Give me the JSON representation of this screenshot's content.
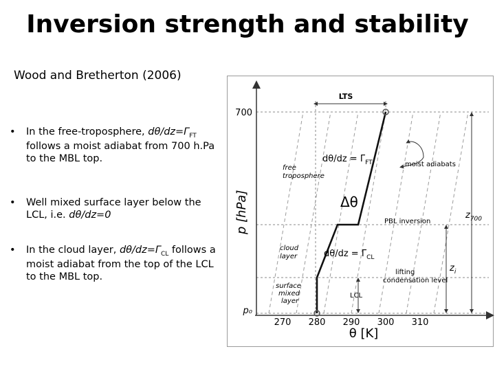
{
  "title": "Inversion strength and stability",
  "subtitle": "Wood and Bretherton (2006)",
  "bullets": [
    {
      "prefix": "In the free-troposphere, ",
      "math": "dθ/dz=Γ",
      "sub": "FT",
      "suffix": " follows a moist adiabat from 700 h.Pa to the MBL top."
    },
    {
      "prefix": "Well mixed surface layer below the LCL, i.e. ",
      "math": "dθ/dz=0",
      "sub": "",
      "suffix": ""
    },
    {
      "prefix": "In the cloud layer, ",
      "math": "dθ/dz=Γ",
      "sub": "CL",
      "suffix": " follows a moist adiabat from the top of the LCL to the MBL top."
    }
  ],
  "figure": {
    "ylabel": "p [hPa]",
    "xlabel": "θ [K]",
    "y_ticks": [
      {
        "label": "700"
      },
      {
        "label": "p₀"
      }
    ],
    "x_ticks": [
      "270",
      "280",
      "290",
      "300",
      "310"
    ],
    "profile_K": [
      {
        "theta": 280,
        "level": "surface"
      },
      {
        "theta": 280,
        "level": "LCL"
      },
      {
        "theta": 286,
        "level": "PBL inversion"
      },
      {
        "theta": 292,
        "level": "PBL inversion"
      },
      {
        "theta": 300,
        "level": "700 hPa"
      }
    ],
    "labels": {
      "lts": "LTS",
      "moist_adiabats": "moist adiabats",
      "free_troposphere": [
        "free",
        "troposphere"
      ],
      "gamma_ft": "dθ/dz = Γ",
      "gamma_ft_sub": "FT",
      "delta_theta": "Δθ",
      "pbl_inversion": "PBL inversion",
      "z700": "z",
      "z700_sub": "700",
      "cloud_layer": [
        "cloud",
        "layer"
      ],
      "gamma_cl": "dθ/dz = Γ",
      "gamma_cl_sub": "CL",
      "zi": "z",
      "zi_sub": "i",
      "lifting_condensation_level": [
        "lifting",
        "condensation level"
      ],
      "lcl": "LCL",
      "surface_mixed_layer": [
        "surface",
        "mixed",
        "layer"
      ]
    },
    "colors": {
      "profile": "#111111",
      "guide": "#888888",
      "adiabat": "#9a9a9a"
    }
  }
}
